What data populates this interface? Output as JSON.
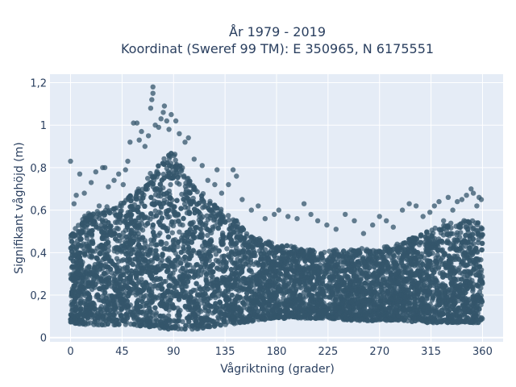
{
  "chart_data": {
    "type": "scatter",
    "title_line1": "År 1979 - 2019",
    "title_line2": "Koordinat (Sweref 99 TM): E 350965, N 6175551",
    "xlabel": "Vågriktning (grader)",
    "ylabel": "Signifikant våghöjd (m)",
    "xlim": [
      -18,
      378
    ],
    "ylim": [
      -0.02,
      1.24
    ],
    "x_ticks": [
      0,
      45,
      90,
      135,
      180,
      225,
      270,
      315,
      360
    ],
    "x_tick_labels": [
      "0",
      "45",
      "90",
      "135",
      "180",
      "225",
      "270",
      "315",
      "360"
    ],
    "y_ticks": [
      0,
      0.2,
      0.4,
      0.6,
      0.8,
      1.0,
      1.2
    ],
    "y_tick_labels": [
      "0",
      "0,2",
      "0,4",
      "0,6",
      "0,8",
      "1",
      "1,2"
    ],
    "grid": true,
    "colors": {
      "marker": "#34566b",
      "plot_bg": "#e5ecf6",
      "grid": "#ffffff"
    },
    "envelope": {
      "x": [
        0,
        15,
        30,
        45,
        55,
        65,
        75,
        80,
        85,
        90,
        95,
        100,
        110,
        120,
        135,
        150,
        165,
        180,
        200,
        225,
        250,
        270,
        290,
        310,
        330,
        345,
        360
      ],
      "lower": [
        0.07,
        0.06,
        0.06,
        0.06,
        0.06,
        0.05,
        0.05,
        0.04,
        0.04,
        0.04,
        0.04,
        0.04,
        0.04,
        0.05,
        0.06,
        0.07,
        0.08,
        0.09,
        0.09,
        0.09,
        0.08,
        0.08,
        0.08,
        0.07,
        0.07,
        0.07,
        0.07
      ],
      "upper": [
        0.5,
        0.6,
        0.62,
        0.65,
        0.7,
        0.76,
        0.82,
        0.86,
        0.88,
        0.88,
        0.84,
        0.8,
        0.72,
        0.67,
        0.6,
        0.54,
        0.47,
        0.45,
        0.43,
        0.42,
        0.42,
        0.43,
        0.46,
        0.5,
        0.55,
        0.56,
        0.56
      ]
    },
    "outliers": [
      {
        "x": 0,
        "y": 0.83
      },
      {
        "x": 3,
        "y": 0.63
      },
      {
        "x": 5,
        "y": 0.67
      },
      {
        "x": 8,
        "y": 0.77
      },
      {
        "x": 12,
        "y": 0.68
      },
      {
        "x": 18,
        "y": 0.73
      },
      {
        "x": 22,
        "y": 0.78
      },
      {
        "x": 25,
        "y": 0.62
      },
      {
        "x": 28,
        "y": 0.8
      },
      {
        "x": 30,
        "y": 0.8
      },
      {
        "x": 33,
        "y": 0.71
      },
      {
        "x": 38,
        "y": 0.74
      },
      {
        "x": 42,
        "y": 0.77
      },
      {
        "x": 46,
        "y": 0.72
      },
      {
        "x": 48,
        "y": 0.79
      },
      {
        "x": 50,
        "y": 0.83
      },
      {
        "x": 52,
        "y": 0.92
      },
      {
        "x": 55,
        "y": 1.01
      },
      {
        "x": 58,
        "y": 1.01
      },
      {
        "x": 60,
        "y": 0.93
      },
      {
        "x": 62,
        "y": 0.97
      },
      {
        "x": 65,
        "y": 0.9
      },
      {
        "x": 68,
        "y": 0.95
      },
      {
        "x": 70,
        "y": 1.08
      },
      {
        "x": 71,
        "y": 1.12
      },
      {
        "x": 72,
        "y": 1.15
      },
      {
        "x": 72,
        "y": 1.18
      },
      {
        "x": 74,
        "y": 1.0
      },
      {
        "x": 77,
        "y": 0.99
      },
      {
        "x": 79,
        "y": 1.03
      },
      {
        "x": 81,
        "y": 1.06
      },
      {
        "x": 82,
        "y": 1.09
      },
      {
        "x": 84,
        "y": 1.02
      },
      {
        "x": 86,
        "y": 0.98
      },
      {
        "x": 88,
        "y": 1.05
      },
      {
        "x": 92,
        "y": 1.02
      },
      {
        "x": 95,
        "y": 0.96
      },
      {
        "x": 100,
        "y": 0.92
      },
      {
        "x": 103,
        "y": 0.94
      },
      {
        "x": 108,
        "y": 0.84
      },
      {
        "x": 115,
        "y": 0.81
      },
      {
        "x": 120,
        "y": 0.74
      },
      {
        "x": 126,
        "y": 0.72
      },
      {
        "x": 128,
        "y": 0.79
      },
      {
        "x": 132,
        "y": 0.68
      },
      {
        "x": 138,
        "y": 0.72
      },
      {
        "x": 142,
        "y": 0.79
      },
      {
        "x": 145,
        "y": 0.76
      },
      {
        "x": 150,
        "y": 0.65
      },
      {
        "x": 158,
        "y": 0.6
      },
      {
        "x": 164,
        "y": 0.62
      },
      {
        "x": 170,
        "y": 0.56
      },
      {
        "x": 178,
        "y": 0.58
      },
      {
        "x": 182,
        "y": 0.6
      },
      {
        "x": 190,
        "y": 0.57
      },
      {
        "x": 198,
        "y": 0.56
      },
      {
        "x": 204,
        "y": 0.63
      },
      {
        "x": 210,
        "y": 0.58
      },
      {
        "x": 216,
        "y": 0.55
      },
      {
        "x": 224,
        "y": 0.53
      },
      {
        "x": 232,
        "y": 0.51
      },
      {
        "x": 240,
        "y": 0.58
      },
      {
        "x": 248,
        "y": 0.55
      },
      {
        "x": 256,
        "y": 0.49
      },
      {
        "x": 264,
        "y": 0.53
      },
      {
        "x": 270,
        "y": 0.57
      },
      {
        "x": 276,
        "y": 0.55
      },
      {
        "x": 282,
        "y": 0.52
      },
      {
        "x": 290,
        "y": 0.6
      },
      {
        "x": 296,
        "y": 0.63
      },
      {
        "x": 302,
        "y": 0.62
      },
      {
        "x": 308,
        "y": 0.57
      },
      {
        "x": 314,
        "y": 0.59
      },
      {
        "x": 318,
        "y": 0.62
      },
      {
        "x": 322,
        "y": 0.64
      },
      {
        "x": 326,
        "y": 0.55
      },
      {
        "x": 330,
        "y": 0.66
      },
      {
        "x": 334,
        "y": 0.6
      },
      {
        "x": 338,
        "y": 0.64
      },
      {
        "x": 342,
        "y": 0.65
      },
      {
        "x": 346,
        "y": 0.67
      },
      {
        "x": 350,
        "y": 0.7
      },
      {
        "x": 352,
        "y": 0.68
      },
      {
        "x": 355,
        "y": 0.62
      },
      {
        "x": 357,
        "y": 0.66
      },
      {
        "x": 359,
        "y": 0.65
      }
    ]
  }
}
